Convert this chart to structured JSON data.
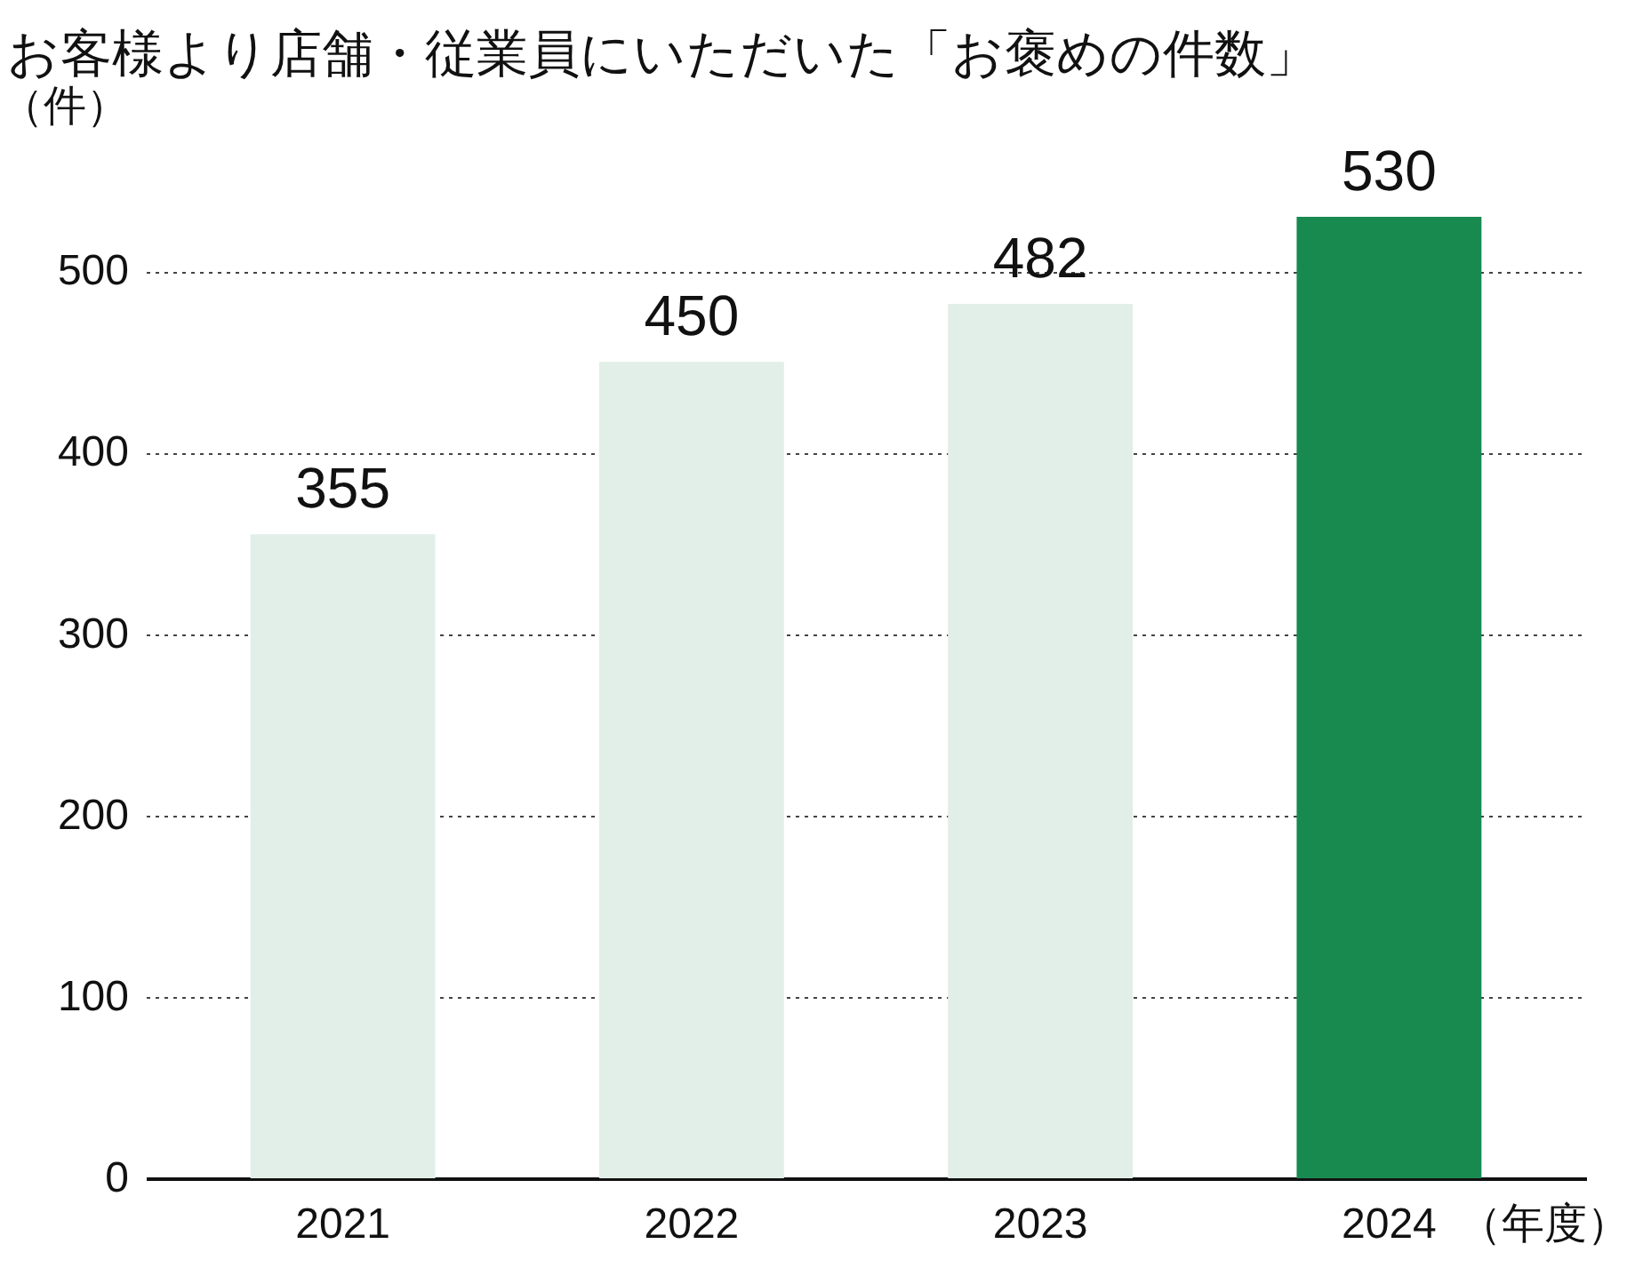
{
  "chart_data": {
    "type": "bar",
    "title": "お客様より店舗・従業員にいただいた「お褒めの件数」",
    "ylabel": "（件）",
    "xlabel": "（年度）",
    "categories": [
      "2021",
      "2022",
      "2023",
      "2024"
    ],
    "values": [
      355,
      450,
      482,
      530
    ],
    "colors": [
      "#e2efe8",
      "#e2efe8",
      "#e2efe8",
      "#188a50"
    ],
    "ylim": [
      0,
      530
    ],
    "yticks": [
      0,
      100,
      200,
      300,
      400,
      500
    ],
    "grid": "y",
    "data_labels": true
  }
}
